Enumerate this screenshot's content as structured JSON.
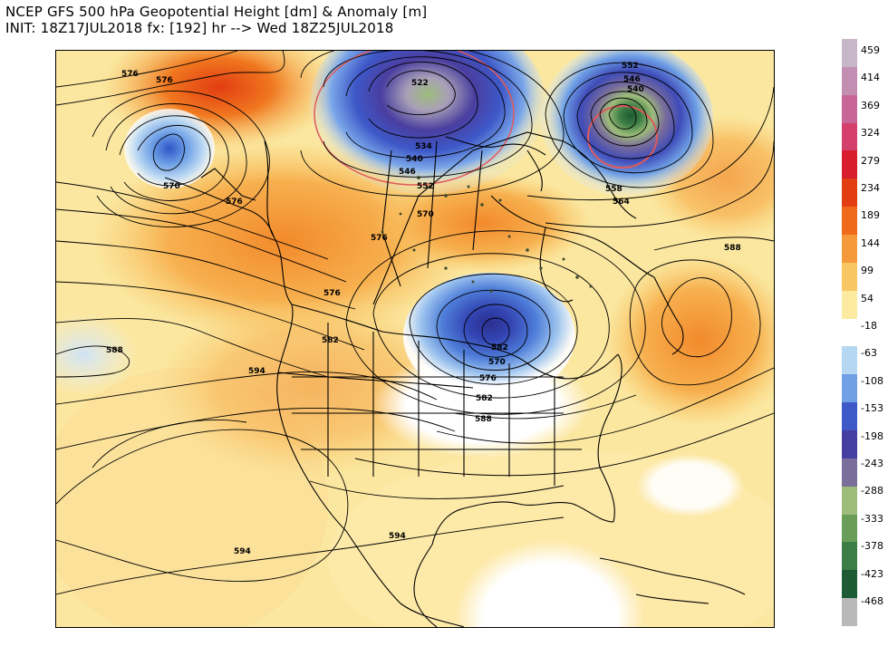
{
  "title": {
    "line1": "NCEP GFS 500 hPa Geopotential Height [dm] & Anomaly [m]",
    "line2": "INIT: 18Z17JUL2018 fx: [192] hr --> Wed 18Z25JUL2018"
  },
  "map": {
    "contour_labels": [
      "576",
      "576",
      "570",
      "576",
      "576",
      "522",
      "534",
      "540",
      "546",
      "552",
      "540",
      "546",
      "552",
      "558",
      "564",
      "570",
      "576",
      "582",
      "588",
      "594",
      "588",
      "582",
      "576",
      "570",
      "582",
      "588",
      "594",
      "594",
      "594"
    ]
  },
  "colorbar": {
    "labels": [
      "459",
      "414",
      "369",
      "324",
      "279",
      "234",
      "189",
      "144",
      "99",
      "54",
      "-18",
      "-63",
      "-108",
      "-153",
      "-198",
      "-243",
      "-288",
      "-333",
      "-378",
      "-423",
      "-468"
    ],
    "colors": [
      "#c6b6c8",
      "#c28fb3",
      "#c86797",
      "#d43f6c",
      "#d81b2e",
      "#e23d12",
      "#f06a1c",
      "#f59a3a",
      "#f9c664",
      "#fbea9f",
      "#ffffff",
      "#b5d7f1",
      "#6fa0e6",
      "#3f58c8",
      "#433ea0",
      "#7b6e9a",
      "#9dbc7a",
      "#6a9d58",
      "#3b7d44",
      "#1e5a33",
      "#b9b9b9"
    ]
  }
}
